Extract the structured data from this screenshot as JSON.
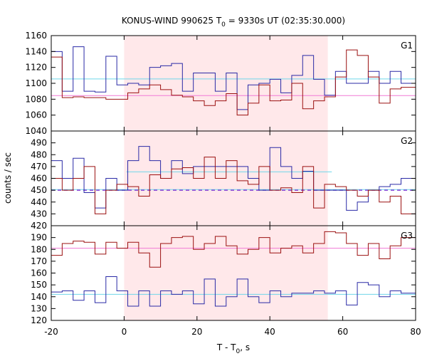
{
  "chart_data": {
    "type": "line",
    "title": "KONUS-WIND 990625 T",
    "title_sub": "0",
    "title_rest": " = 9330s UT (02:35:30.000)",
    "xlabel": "T - T",
    "xlabel_sub": "0",
    "xlabel_rest": ", s",
    "ylabel": "counts / sec",
    "xlim": [
      -20,
      80
    ],
    "x_ticks": [
      -20,
      0,
      20,
      40,
      60,
      80
    ],
    "highlight": {
      "x0": 0,
      "x1": 55.9,
      "color": "#ffe8ea"
    },
    "colors": {
      "blue": "#2a2aa6",
      "red": "#9b1010",
      "cyan": "#6fd6ea",
      "pink": "#f07ad6",
      "purple": "#7a1fd0"
    },
    "panels": [
      {
        "label": "G1",
        "ylim": [
          1040,
          1160
        ],
        "y_ticks": [
          1040,
          1060,
          1080,
          1100,
          1120,
          1140,
          1160
        ],
        "bin_edges": [
          -20,
          -17,
          -14,
          -11,
          -8,
          -5,
          -2,
          1,
          4,
          7,
          10,
          13,
          16,
          19,
          22,
          25,
          28,
          31,
          34,
          37,
          40,
          43,
          46,
          49,
          52,
          55,
          58,
          61,
          64,
          67,
          70,
          73,
          76,
          80
        ],
        "series": [
          {
            "color": "blue",
            "values": [
              1140,
              1090,
              1146,
              1090,
              1089,
              1134,
              1098,
              1100,
              1098,
              1120,
              1122,
              1125,
              1090,
              1113,
              1113,
              1090,
              1113,
              1067,
              1098,
              1100,
              1105,
              1088,
              1110,
              1135,
              1105,
              1085,
              1115,
              1100,
              1100,
              1115,
              1100,
              1115,
              1100
            ]
          },
          {
            "color": "red",
            "values": [
              1133,
              1082,
              1083,
              1082,
              1082,
              1080,
              1080,
              1088,
              1093,
              1098,
              1092,
              1085,
              1083,
              1078,
              1072,
              1078,
              1087,
              1060,
              1075,
              1098,
              1078,
              1079,
              1100,
              1068,
              1078,
              1083,
              1108,
              1142,
              1135,
              1108,
              1075,
              1093,
              1095
            ]
          }
        ],
        "levels": [
          {
            "color": "cyan",
            "value": 1105.5,
            "style": "solid"
          },
          {
            "color": "pink",
            "value": 1084.5,
            "style": "solid"
          }
        ]
      },
      {
        "label": "G2",
        "ylim": [
          420,
          500
        ],
        "y_ticks": [
          420,
          430,
          440,
          450,
          460,
          470,
          480,
          490
        ],
        "bin_edges": [
          -20,
          -17,
          -14,
          -11,
          -8,
          -5,
          -2,
          1,
          4,
          7,
          10,
          13,
          16,
          19,
          22,
          25,
          28,
          31,
          34,
          37,
          40,
          43,
          46,
          49,
          52,
          55,
          58,
          61,
          64,
          67,
          70,
          73,
          76,
          80
        ],
        "series": [
          {
            "color": "blue",
            "values": [
              475,
              460,
              477,
              448,
              435,
              460,
              450,
              475,
              487,
              475,
              460,
              475,
              464,
              470,
              470,
              470,
              470,
              470,
              460,
              450,
              486,
              470,
              460,
              466,
              450,
              450,
              450,
              433,
              440,
              450,
              453,
              455,
              460
            ]
          },
          {
            "color": "red",
            "values": [
              460,
              450,
              460,
              470,
              430,
              450,
              455,
              453,
              445,
              463,
              460,
              468,
              469,
              460,
              478,
              460,
              475,
              458,
              455,
              470,
              450,
              452,
              448,
              470,
              435,
              455,
              453,
              450,
              445,
              450,
              440,
              445,
              430
            ]
          }
        ],
        "levels": [
          {
            "color": "cyan",
            "value": 465.5,
            "style": "solid",
            "from": 0.6,
            "to": 57
          },
          {
            "color": "cyan",
            "value": 450.5,
            "style": "solid"
          },
          {
            "color": "purple",
            "value": 450,
            "style": "dashed"
          }
        ]
      },
      {
        "label": "G3",
        "ylim": [
          120,
          200
        ],
        "y_ticks": [
          120,
          130,
          140,
          150,
          160,
          170,
          180,
          190
        ],
        "bin_edges": [
          -20,
          -17,
          -14,
          -11,
          -8,
          -5,
          -2,
          1,
          4,
          7,
          10,
          13,
          16,
          19,
          22,
          25,
          28,
          31,
          34,
          37,
          40,
          43,
          46,
          49,
          52,
          55,
          58,
          61,
          64,
          67,
          70,
          73,
          76,
          80
        ],
        "series": [
          {
            "color": "blue",
            "values": [
              144,
              145,
              137,
              145,
              135,
              157,
              145,
              132,
              145,
              132,
              145,
              142,
              145,
              134,
              155,
              132,
              140,
              155,
              140,
              135,
              145,
              140,
              143,
              143,
              145,
              143,
              145,
              133,
              152,
              150,
              140,
              145,
              143
            ]
          },
          {
            "color": "red",
            "values": [
              175,
              185,
              187,
              186,
              176,
              186,
              181,
              186,
              177,
              165,
              185,
              190,
              191,
              180,
              185,
              191,
              183,
              176,
              180,
              190,
              177,
              181,
              183,
              177,
              185,
              195,
              194,
              185,
              175,
              185,
              172,
              183,
              190
            ]
          }
        ],
        "levels": [
          {
            "color": "pink",
            "value": 181,
            "style": "solid"
          },
          {
            "color": "cyan",
            "value": 142,
            "style": "solid"
          }
        ]
      }
    ]
  }
}
